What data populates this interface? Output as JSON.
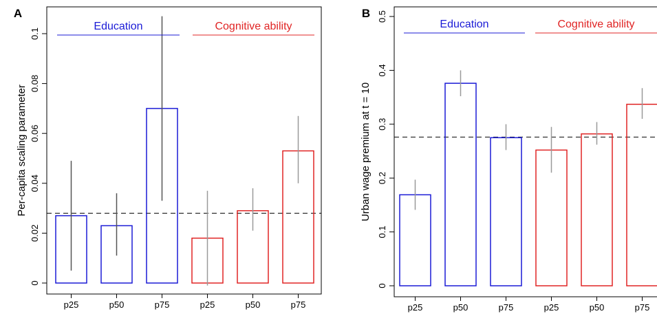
{
  "chart_data": [
    {
      "type": "bar",
      "panel_label": "A",
      "ylabel": "Per-capita scaling parameter",
      "ylim": [
        0,
        0.11
      ],
      "yticks": [
        0,
        0.02,
        0.04,
        0.06,
        0.08,
        0.1
      ],
      "ytick_labels": [
        "0",
        "0.02",
        "0.04",
        "0.06",
        "0.08",
        "0.1"
      ],
      "categories": [
        "p25",
        "p50",
        "p75",
        "p25",
        "p50",
        "p75"
      ],
      "values": [
        0.027,
        0.023,
        0.07,
        0.018,
        0.029,
        0.053
      ],
      "error_low": [
        0.005,
        0.011,
        0.033,
        -0.001,
        0.021,
        0.04
      ],
      "error_high": [
        0.049,
        0.036,
        0.107,
        0.037,
        0.038,
        0.067
      ],
      "reference_line": 0.028,
      "groups": [
        {
          "name": "Education",
          "color": "#1a1ad6",
          "bar_range": [
            0,
            2
          ]
        },
        {
          "name": "Cognitive ability",
          "color": "#e02424",
          "bar_range": [
            3,
            5
          ]
        }
      ],
      "grid": false
    },
    {
      "type": "bar",
      "panel_label": "B",
      "ylabel": "Urban wage premium at  t = 10",
      "ylim": [
        0,
        0.5
      ],
      "yticks": [
        0,
        0.1,
        0.2,
        0.3,
        0.4,
        0.5
      ],
      "ytick_labels": [
        "0",
        "0.1",
        "0.2",
        "0.3",
        "0.4",
        "0.5"
      ],
      "categories": [
        "p25",
        "p50",
        "p75",
        "p25",
        "p50",
        "p75"
      ],
      "values": [
        0.169,
        0.376,
        0.275,
        0.252,
        0.282,
        0.337
      ],
      "error_low": [
        0.141,
        0.352,
        0.252,
        0.21,
        0.262,
        0.31
      ],
      "error_high": [
        0.197,
        0.4,
        0.3,
        0.295,
        0.304,
        0.367
      ],
      "reference_line": 0.276,
      "groups": [
        {
          "name": "Education",
          "color": "#1a1ad6",
          "bar_range": [
            0,
            2
          ]
        },
        {
          "name": "Cognitive ability",
          "color": "#e02424",
          "bar_range": [
            3,
            5
          ]
        }
      ],
      "grid": false
    }
  ]
}
